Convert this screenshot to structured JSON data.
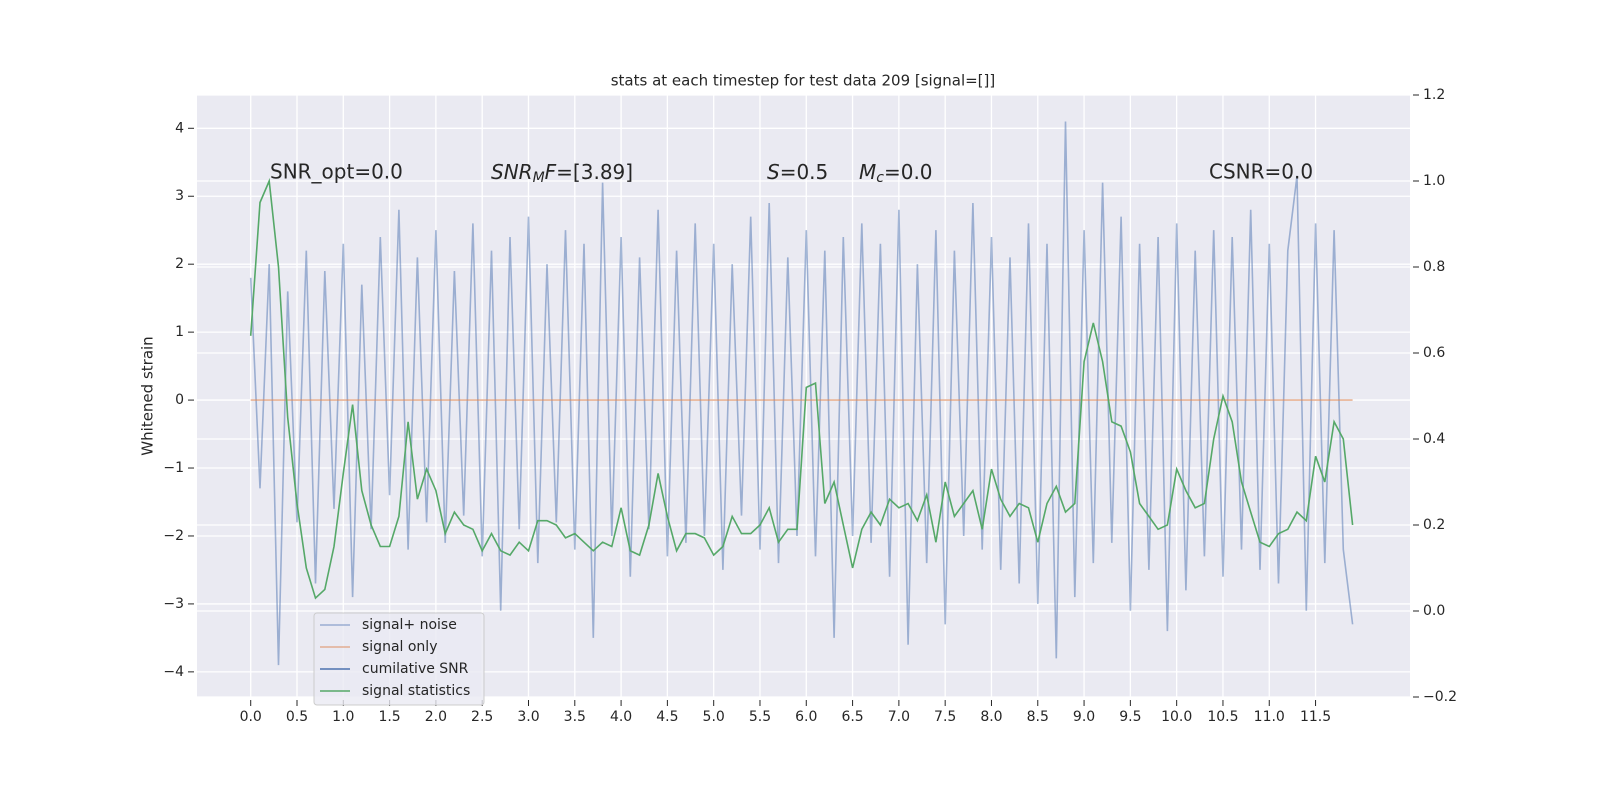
{
  "chart_data": {
    "type": "line",
    "title": "stats at each timestep for test data 209 [signal=[]]",
    "ylabel": "Whitened strain",
    "annotations": [
      "SNR_opt=0.0",
      [
        "SNR",
        "M",
        "F",
        "=[3.89]"
      ],
      [
        "S",
        "=0.5"
      ],
      [
        "M",
        "c",
        "=0.0"
      ],
      "CSNR=0.0"
    ],
    "x": [
      0,
      0.1,
      0.2,
      0.3,
      0.4,
      0.5,
      0.6,
      0.7,
      0.8,
      0.9,
      1.0,
      1.1,
      1.2,
      1.3,
      1.4,
      1.5,
      1.6,
      1.7,
      1.8,
      1.9,
      2.0,
      2.1,
      2.2,
      2.3,
      2.4,
      2.5,
      2.6,
      2.7,
      2.8,
      2.9,
      3.0,
      3.1,
      3.2,
      3.3,
      3.4,
      3.5,
      3.6,
      3.7,
      3.8,
      3.9,
      4.0,
      4.1,
      4.2,
      4.3,
      4.4,
      4.5,
      4.6,
      4.7,
      4.8,
      4.9,
      5.0,
      5.1,
      5.2,
      5.3,
      5.4,
      5.5,
      5.6,
      5.7,
      5.8,
      5.9,
      6.0,
      6.1,
      6.2,
      6.3,
      6.4,
      6.5,
      6.6,
      6.7,
      6.8,
      6.9,
      7.0,
      7.1,
      7.2,
      7.3,
      7.4,
      7.5,
      7.6,
      7.7,
      7.8,
      7.9,
      8.0,
      8.1,
      8.2,
      8.3,
      8.4,
      8.5,
      8.6,
      8.7,
      8.8,
      8.9,
      9.0,
      9.1,
      9.2,
      9.3,
      9.4,
      9.5,
      9.6,
      9.7,
      9.8,
      9.9,
      10.0,
      10.1,
      10.2,
      10.3,
      10.4,
      10.5,
      10.6,
      10.7,
      10.8,
      10.9,
      11.0,
      11.1,
      11.2,
      11.3,
      11.4,
      11.5,
      11.6,
      11.7,
      11.8,
      11.9
    ],
    "series": [
      {
        "name": "signal+ noise",
        "color": "#4c72b0",
        "alpha": 0.5,
        "values": [
          1.8,
          -1.3,
          2.0,
          -3.9,
          1.6,
          -1.8,
          2.2,
          -2.7,
          1.9,
          -1.6,
          2.3,
          -2.9,
          1.7,
          -1.9,
          2.4,
          -1.4,
          2.8,
          -2.2,
          2.1,
          -1.8,
          2.5,
          -2.1,
          1.9,
          -1.7,
          2.6,
          -2.3,
          2.2,
          -3.1,
          2.4,
          -1.9,
          2.7,
          -2.4,
          2.0,
          -1.8,
          2.5,
          -2.2,
          2.3,
          -3.5,
          3.2,
          -2.0,
          2.4,
          -2.6,
          2.1,
          -1.9,
          2.8,
          -2.3,
          2.2,
          -2.1,
          2.6,
          -2.0,
          2.3,
          -2.5,
          2.0,
          -1.7,
          2.7,
          -2.2,
          2.9,
          -2.4,
          2.1,
          -2.0,
          2.5,
          -2.3,
          2.2,
          -3.5,
          2.4,
          -2.0,
          2.6,
          -2.1,
          2.3,
          -2.6,
          2.8,
          -3.6,
          2.0,
          -2.4,
          2.5,
          -3.3,
          2.2,
          -2.0,
          2.9,
          -2.2,
          2.4,
          -2.5,
          2.1,
          -2.7,
          2.6,
          -3.0,
          2.3,
          -3.8,
          4.1,
          -2.9,
          2.5,
          -2.4,
          3.2,
          -2.1,
          2.7,
          -3.1,
          2.3,
          -2.5,
          2.4,
          -3.4,
          2.6,
          -2.8,
          2.2,
          -2.3,
          2.5,
          -2.6,
          2.4,
          -2.2,
          2.8,
          -2.5,
          2.3,
          -2.7,
          2.2,
          3.3,
          -3.1,
          2.6,
          -2.4,
          2.5,
          -2.2,
          -3.3
        ]
      },
      {
        "name": "signal only",
        "color": "#dd8452",
        "alpha": 0.6,
        "values": [
          0,
          0,
          0,
          0,
          0,
          0,
          0,
          0,
          0,
          0,
          0,
          0,
          0,
          0,
          0,
          0,
          0,
          0,
          0,
          0,
          0,
          0,
          0,
          0,
          0,
          0,
          0,
          0,
          0,
          0,
          0,
          0,
          0,
          0,
          0,
          0,
          0,
          0,
          0,
          0,
          0,
          0,
          0,
          0,
          0,
          0,
          0,
          0,
          0,
          0,
          0,
          0,
          0,
          0,
          0,
          0,
          0,
          0,
          0,
          0,
          0,
          0,
          0,
          0,
          0,
          0,
          0,
          0,
          0,
          0,
          0,
          0,
          0,
          0,
          0,
          0,
          0,
          0,
          0,
          0,
          0,
          0,
          0,
          0,
          0,
          0,
          0,
          0,
          0,
          0,
          0,
          0,
          0,
          0,
          0,
          0,
          0,
          0,
          0,
          0,
          0,
          0,
          0,
          0,
          0,
          0,
          0,
          0,
          0,
          0,
          0,
          0,
          0,
          0,
          0,
          0,
          0,
          0,
          0,
          0
        ]
      },
      {
        "name": "cumilative SNR",
        "color": "#4c72b0",
        "alpha": 1
      },
      {
        "name": "signal statistics",
        "color": "#55a868",
        "alpha": 1,
        "axis": "y2",
        "values": [
          0.64,
          0.95,
          1.0,
          0.8,
          0.45,
          0.25,
          0.1,
          0.03,
          0.05,
          0.15,
          0.32,
          0.48,
          0.28,
          0.2,
          0.15,
          0.15,
          0.22,
          0.44,
          0.26,
          0.33,
          0.28,
          0.18,
          0.23,
          0.2,
          0.19,
          0.14,
          0.18,
          0.14,
          0.13,
          0.16,
          0.14,
          0.21,
          0.21,
          0.2,
          0.17,
          0.18,
          0.16,
          0.14,
          0.16,
          0.15,
          0.24,
          0.14,
          0.13,
          0.2,
          0.32,
          0.22,
          0.14,
          0.18,
          0.18,
          0.17,
          0.13,
          0.15,
          0.22,
          0.18,
          0.18,
          0.2,
          0.24,
          0.16,
          0.19,
          0.19,
          0.52,
          0.53,
          0.25,
          0.3,
          0.2,
          0.1,
          0.19,
          0.23,
          0.2,
          0.26,
          0.24,
          0.25,
          0.21,
          0.27,
          0.16,
          0.3,
          0.22,
          0.25,
          0.28,
          0.19,
          0.33,
          0.26,
          0.22,
          0.25,
          0.24,
          0.16,
          0.25,
          0.29,
          0.23,
          0.25,
          0.58,
          0.67,
          0.58,
          0.44,
          0.43,
          0.37,
          0.25,
          0.22,
          0.19,
          0.2,
          0.33,
          0.28,
          0.24,
          0.25,
          0.4,
          0.5,
          0.44,
          0.3,
          0.23,
          0.16,
          0.15,
          0.18,
          0.19,
          0.23,
          0.21,
          0.36,
          0.3,
          0.44,
          0.4,
          0.2
        ]
      }
    ],
    "xlim": [
      -0.58,
      12.52
    ],
    "xticks": [
      {
        "value": 0,
        "label": "0.0"
      },
      0.5,
      {
        "value": 1,
        "label": "1.0"
      },
      1.5,
      {
        "value": 2,
        "label": "2.0"
      },
      2.5,
      {
        "value": 3,
        "label": "3.0"
      },
      3.5,
      {
        "value": 4,
        "label": "4.0"
      },
      4.5,
      {
        "value": 5,
        "label": "5.0"
      },
      5.5,
      {
        "value": 6,
        "label": "6.0"
      },
      6.5,
      {
        "value": 7,
        "label": "7.0"
      },
      7.5,
      {
        "value": 8,
        "label": "8.0"
      },
      8.5,
      {
        "value": 9,
        "label": "9.0"
      },
      9.5,
      {
        "value": 10,
        "label": "10.0"
      },
      10.5,
      {
        "value": 11,
        "label": "11.0"
      },
      11.5
    ],
    "ylim": [
      -4.37,
      4.49
    ],
    "yticks": [
      {
        "value": -4,
        "label": "−4"
      },
      {
        "value": -3,
        "label": "−3"
      },
      {
        "value": -2,
        "label": "−2"
      },
      {
        "value": -1,
        "label": "−1"
      },
      0,
      1,
      2,
      3,
      4
    ],
    "y2lim": [
      -0.2,
      1.2
    ],
    "y2ticks": [
      {
        "value": -0.2,
        "label": "−0.2"
      },
      {
        "value": 0,
        "label": "0.0"
      },
      0.2,
      0.4,
      0.6,
      0.8,
      {
        "value": 1,
        "label": "1.0"
      },
      1.2
    ],
    "grid": true,
    "legend": "lower left"
  }
}
